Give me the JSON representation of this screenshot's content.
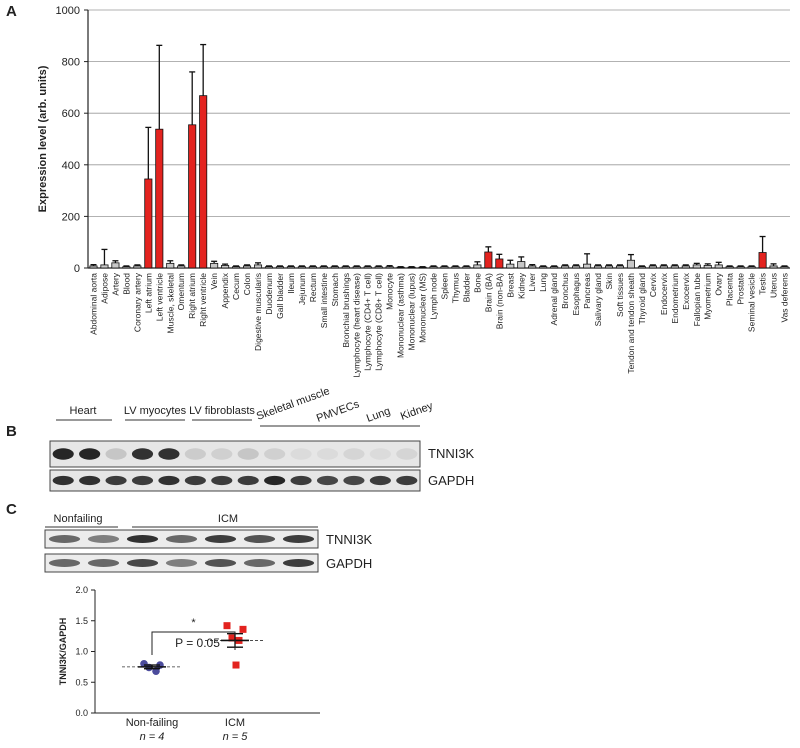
{
  "chart_data": [
    {
      "type": "bar",
      "panel": "A",
      "ylabel": "Expression level (arb. units)",
      "categories": [
        "Abdominal aorta",
        "Adipose",
        "Artery",
        "Blood",
        "Coronary artery",
        "Left atrium",
        "Left ventricle",
        "Muscle, skeletal",
        "Omentum",
        "Right atrium",
        "Right ventricle",
        "Vein",
        "Appendix",
        "Cecum",
        "Colon",
        "Digestive muscularis",
        "Duodenum",
        "Gall bladder",
        "Ileum",
        "Jejunum",
        "Rectum",
        "Small intestine",
        "Stomach",
        "Bronchial brushings",
        "Lymphocyte (heart disease)",
        "Lymphocyte (CD4+ T cell)",
        "Lymphocyte (CD8+ T cell)",
        "Monocyte",
        "Mononuclear (asthma)",
        "Mononuclear (lupus)",
        "Mononuclear (MS)",
        "Lymph node",
        "Spleen",
        "Thymus",
        "Bladder",
        "Bone",
        "Brain (BA)",
        "Brain (non-BA)",
        "Breast",
        "Kidney",
        "Liver",
        "Lung",
        "Adrenal gland",
        "Bronchus",
        "Esophagus",
        "Pancreas",
        "Salivary gland",
        "Skin",
        "Soft tissues",
        "Tendon and tendon sheath",
        "Thyroid gland",
        "Cervix",
        "Endocervix",
        "Endometrium",
        "Exocervix",
        "Fallopian tube",
        "Myometrium",
        "Ovary",
        "Placenta",
        "Prostate",
        "Seminal vesicle",
        "Testis",
        "Uterus",
        "Vas deferens"
      ],
      "values": [
        8,
        12,
        20,
        5,
        8,
        345,
        538,
        18,
        8,
        555,
        668,
        18,
        10,
        5,
        8,
        12,
        5,
        5,
        5,
        5,
        5,
        5,
        5,
        5,
        5,
        5,
        5,
        5,
        3,
        3,
        3,
        5,
        5,
        5,
        5,
        12,
        62,
        35,
        15,
        25,
        8,
        5,
        5,
        8,
        8,
        15,
        8,
        8,
        8,
        30,
        5,
        8,
        8,
        8,
        8,
        12,
        10,
        12,
        5,
        5,
        5,
        60,
        8,
        5
      ],
      "errors": [
        5,
        60,
        8,
        3,
        4,
        200,
        325,
        10,
        4,
        205,
        198,
        8,
        5,
        3,
        4,
        8,
        3,
        3,
        3,
        3,
        3,
        3,
        3,
        3,
        3,
        3,
        3,
        4,
        2,
        2,
        2,
        3,
        3,
        3,
        3,
        12,
        20,
        18,
        15,
        18,
        5,
        3,
        3,
        4,
        4,
        40,
        4,
        4,
        4,
        22,
        3,
        4,
        4,
        4,
        4,
        6,
        6,
        10,
        3,
        3,
        3,
        62,
        8,
        3
      ],
      "colors": [
        "#c8c8c8",
        "#c8c8c8",
        "#c8c8c8",
        "#c8c8c8",
        "#c8c8c8",
        "#e3231f",
        "#e3231f",
        "#c8c8c8",
        "#c8c8c8",
        "#e3231f",
        "#e3231f",
        "#c8c8c8",
        "#c8c8c8",
        "#c8c8c8",
        "#c8c8c8",
        "#c8c8c8",
        "#c8c8c8",
        "#c8c8c8",
        "#c8c8c8",
        "#c8c8c8",
        "#c8c8c8",
        "#c8c8c8",
        "#c8c8c8",
        "#c8c8c8",
        "#c8c8c8",
        "#c8c8c8",
        "#c8c8c8",
        "#c8c8c8",
        "#c8c8c8",
        "#c8c8c8",
        "#c8c8c8",
        "#c8c8c8",
        "#c8c8c8",
        "#c8c8c8",
        "#c8c8c8",
        "#c8c8c8",
        "#e3231f",
        "#e3231f",
        "#c8c8c8",
        "#c8c8c8",
        "#c8c8c8",
        "#c8c8c8",
        "#c8c8c8",
        "#c8c8c8",
        "#c8c8c8",
        "#c8c8c8",
        "#c8c8c8",
        "#c8c8c8",
        "#c8c8c8",
        "#c8c8c8",
        "#c8c8c8",
        "#c8c8c8",
        "#c8c8c8",
        "#c8c8c8",
        "#c8c8c8",
        "#c8c8c8",
        "#c8c8c8",
        "#c8c8c8",
        "#c8c8c8",
        "#c8c8c8",
        "#c8c8c8",
        "#e3231f",
        "#c8c8c8",
        "#c8c8c8"
      ],
      "ylim": [
        0,
        1000
      ],
      "yticks": [
        0,
        200,
        400,
        600,
        800,
        1000
      ],
      "grid": true
    },
    {
      "type": "dot",
      "ylabel": "TNNI3K/GAPDH",
      "categories": [
        "Non-failing",
        "ICM"
      ],
      "category_notes": [
        "n = 4",
        "n = 5"
      ],
      "groups": [
        {
          "color": "#4b4b9c",
          "marker": "circle",
          "values": [
            0.8,
            0.78,
            0.74,
            0.68
          ],
          "mean": 0.75,
          "sem": 0.03
        },
        {
          "color": "#e3231f",
          "marker": "square",
          "values": [
            1.42,
            1.36,
            1.22,
            1.18,
            0.78
          ],
          "mean": 1.18,
          "sem": 0.11
        }
      ],
      "ylim": [
        0,
        2
      ],
      "yticks": [
        {
          "value": 0,
          "label": "0.0"
        },
        {
          "value": 0.5,
          "label": "0.5"
        },
        {
          "value": 1,
          "label": "1.0"
        },
        {
          "value": 1.5,
          "label": "1.5"
        },
        {
          "value": 2,
          "label": "2.0"
        }
      ],
      "annotations": [
        "*",
        "P = 0.05"
      ]
    }
  ],
  "blot_b": {
    "panel": "B",
    "lanes": [
      "Heart",
      "LV myocytes",
      "LV fibroblasts",
      "Skeletal muscle",
      "PMVECs",
      "Lung",
      "Kidney"
    ],
    "rows": [
      "TNNI3K",
      "GAPDH"
    ]
  },
  "blot_c": {
    "panel": "C",
    "lanes": [
      "Nonfailing",
      "ICM"
    ],
    "rows": [
      "TNNI3K",
      "GAPDH"
    ]
  }
}
